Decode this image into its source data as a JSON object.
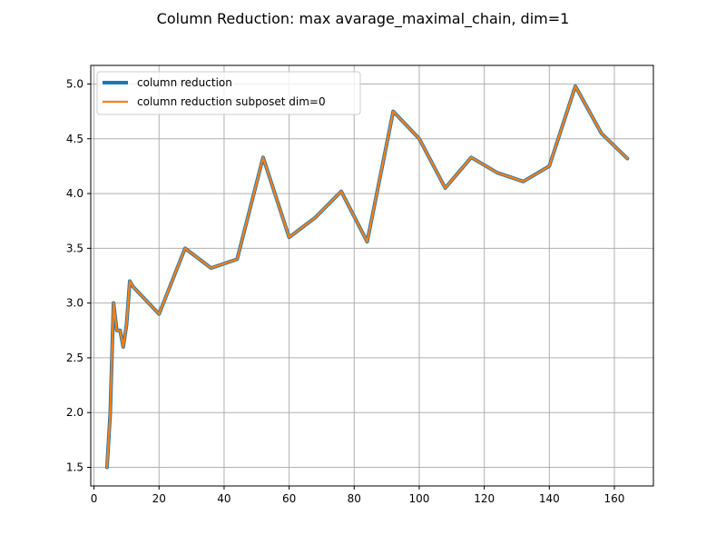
{
  "chart_data": {
    "type": "line",
    "title": "Column Reduction: max avarage_maximal_chain, dim=1",
    "xlabel": "",
    "ylabel": "",
    "xlim": [
      -1,
      172
    ],
    "ylim": [
      1.33,
      5.17
    ],
    "xticks": [
      0,
      20,
      40,
      60,
      80,
      100,
      120,
      140,
      160
    ],
    "yticks": [
      1.5,
      2.0,
      2.5,
      3.0,
      3.5,
      4.0,
      4.5,
      5.0
    ],
    "xtick_labels": [
      "0",
      "20",
      "40",
      "60",
      "80",
      "100",
      "120",
      "140",
      "160"
    ],
    "ytick_labels": [
      "1.5",
      "2.0",
      "2.5",
      "3.0",
      "3.5",
      "4.0",
      "4.5",
      "5.0"
    ],
    "grid": true,
    "legend_position": "upper-left",
    "x": [
      4,
      5,
      6,
      7,
      8,
      9,
      10,
      11,
      12,
      20,
      28,
      36,
      44,
      52,
      60,
      68,
      76,
      84,
      92,
      100,
      108,
      116,
      124,
      132,
      140,
      148,
      156,
      164
    ],
    "series": [
      {
        "name": "column reduction",
        "color": "#1f77b4",
        "values": [
          1.5,
          2.0,
          3.0,
          2.75,
          2.75,
          2.6,
          2.8,
          3.2,
          3.15,
          2.9,
          3.5,
          3.32,
          3.4,
          4.33,
          3.6,
          3.78,
          4.02,
          3.56,
          4.75,
          4.5,
          4.05,
          4.33,
          4.19,
          4.11,
          4.25,
          4.98,
          4.55,
          4.32
        ]
      },
      {
        "name": "column reduction subposet dim=0",
        "color": "#ff7f0e",
        "values": [
          1.5,
          2.0,
          3.0,
          2.75,
          2.75,
          2.6,
          2.8,
          3.2,
          3.15,
          2.9,
          3.5,
          3.32,
          3.4,
          4.33,
          3.6,
          3.78,
          4.02,
          3.56,
          4.75,
          4.5,
          4.05,
          4.33,
          4.19,
          4.11,
          4.25,
          4.98,
          4.55,
          4.32
        ]
      }
    ]
  }
}
